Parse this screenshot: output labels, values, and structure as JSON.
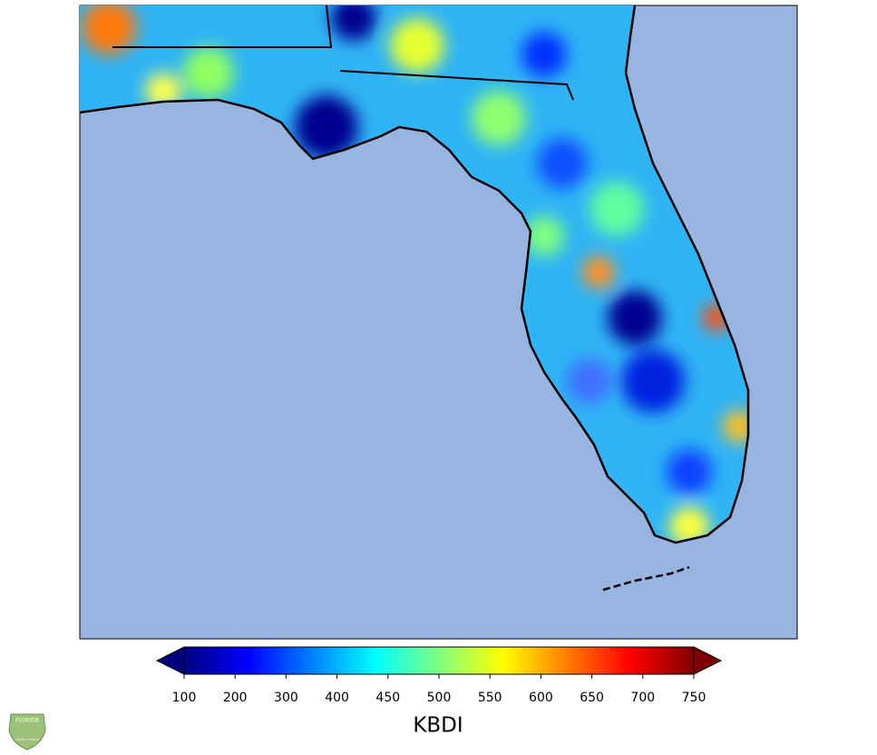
{
  "colorbar": {
    "label": "KBDI",
    "ticks": [
      100,
      200,
      300,
      400,
      450,
      500,
      550,
      600,
      650,
      700,
      750
    ],
    "colors": [
      "#00007f",
      "#0000ff",
      "#007fff",
      "#00ffff",
      "#7fff7f",
      "#ffff00",
      "#ff7f00",
      "#ff0000",
      "#7f0000"
    ]
  },
  "logo": {
    "title": "FLORIDA",
    "subtitle": "FOREST SERVICE"
  }
}
